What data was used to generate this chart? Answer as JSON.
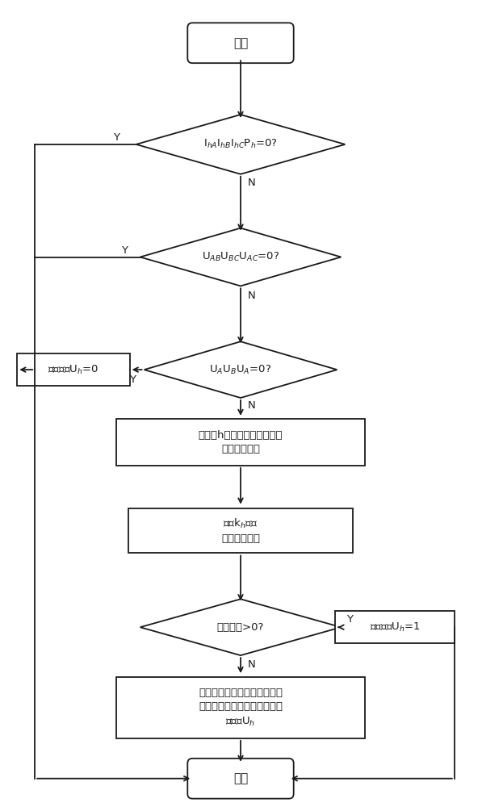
{
  "bg_color": "#ffffff",
  "line_color": "#1a1a1a",
  "text_color": "#1a1a1a",
  "font_size": 9.5,
  "start_text": "开始",
  "end_text": "结束",
  "d1_text": "I$_{hA}$I$_{hB}$I$_{hC}$P$_h$=0?",
  "d2_text": "U$_{AB}$U$_{BC}$U$_{AC}$=0?",
  "d3_text": "U$_A$U$_B$U$_A$=0?",
  "d4_text": "功率偏移>0?",
  "box_uh0_text": "融合参数U$_h$=0",
  "box_uh1_text": "融合参数U$_h$=1",
  "box1_line1": "计算第h路当前数据与历史数",
  "box1_line2": "据间欧式距离",
  "box2_line1": "确定k$_h$时刻",
  "box2_line2": "计算功率偏移",
  "box3_line1": "根据功率偏移，利用逆变器运",
  "box3_line2": "行状态转移的获得概率分布融",
  "box3_line3": "合参数U$_h$",
  "lw": 1.3,
  "arrow_ms": 10
}
